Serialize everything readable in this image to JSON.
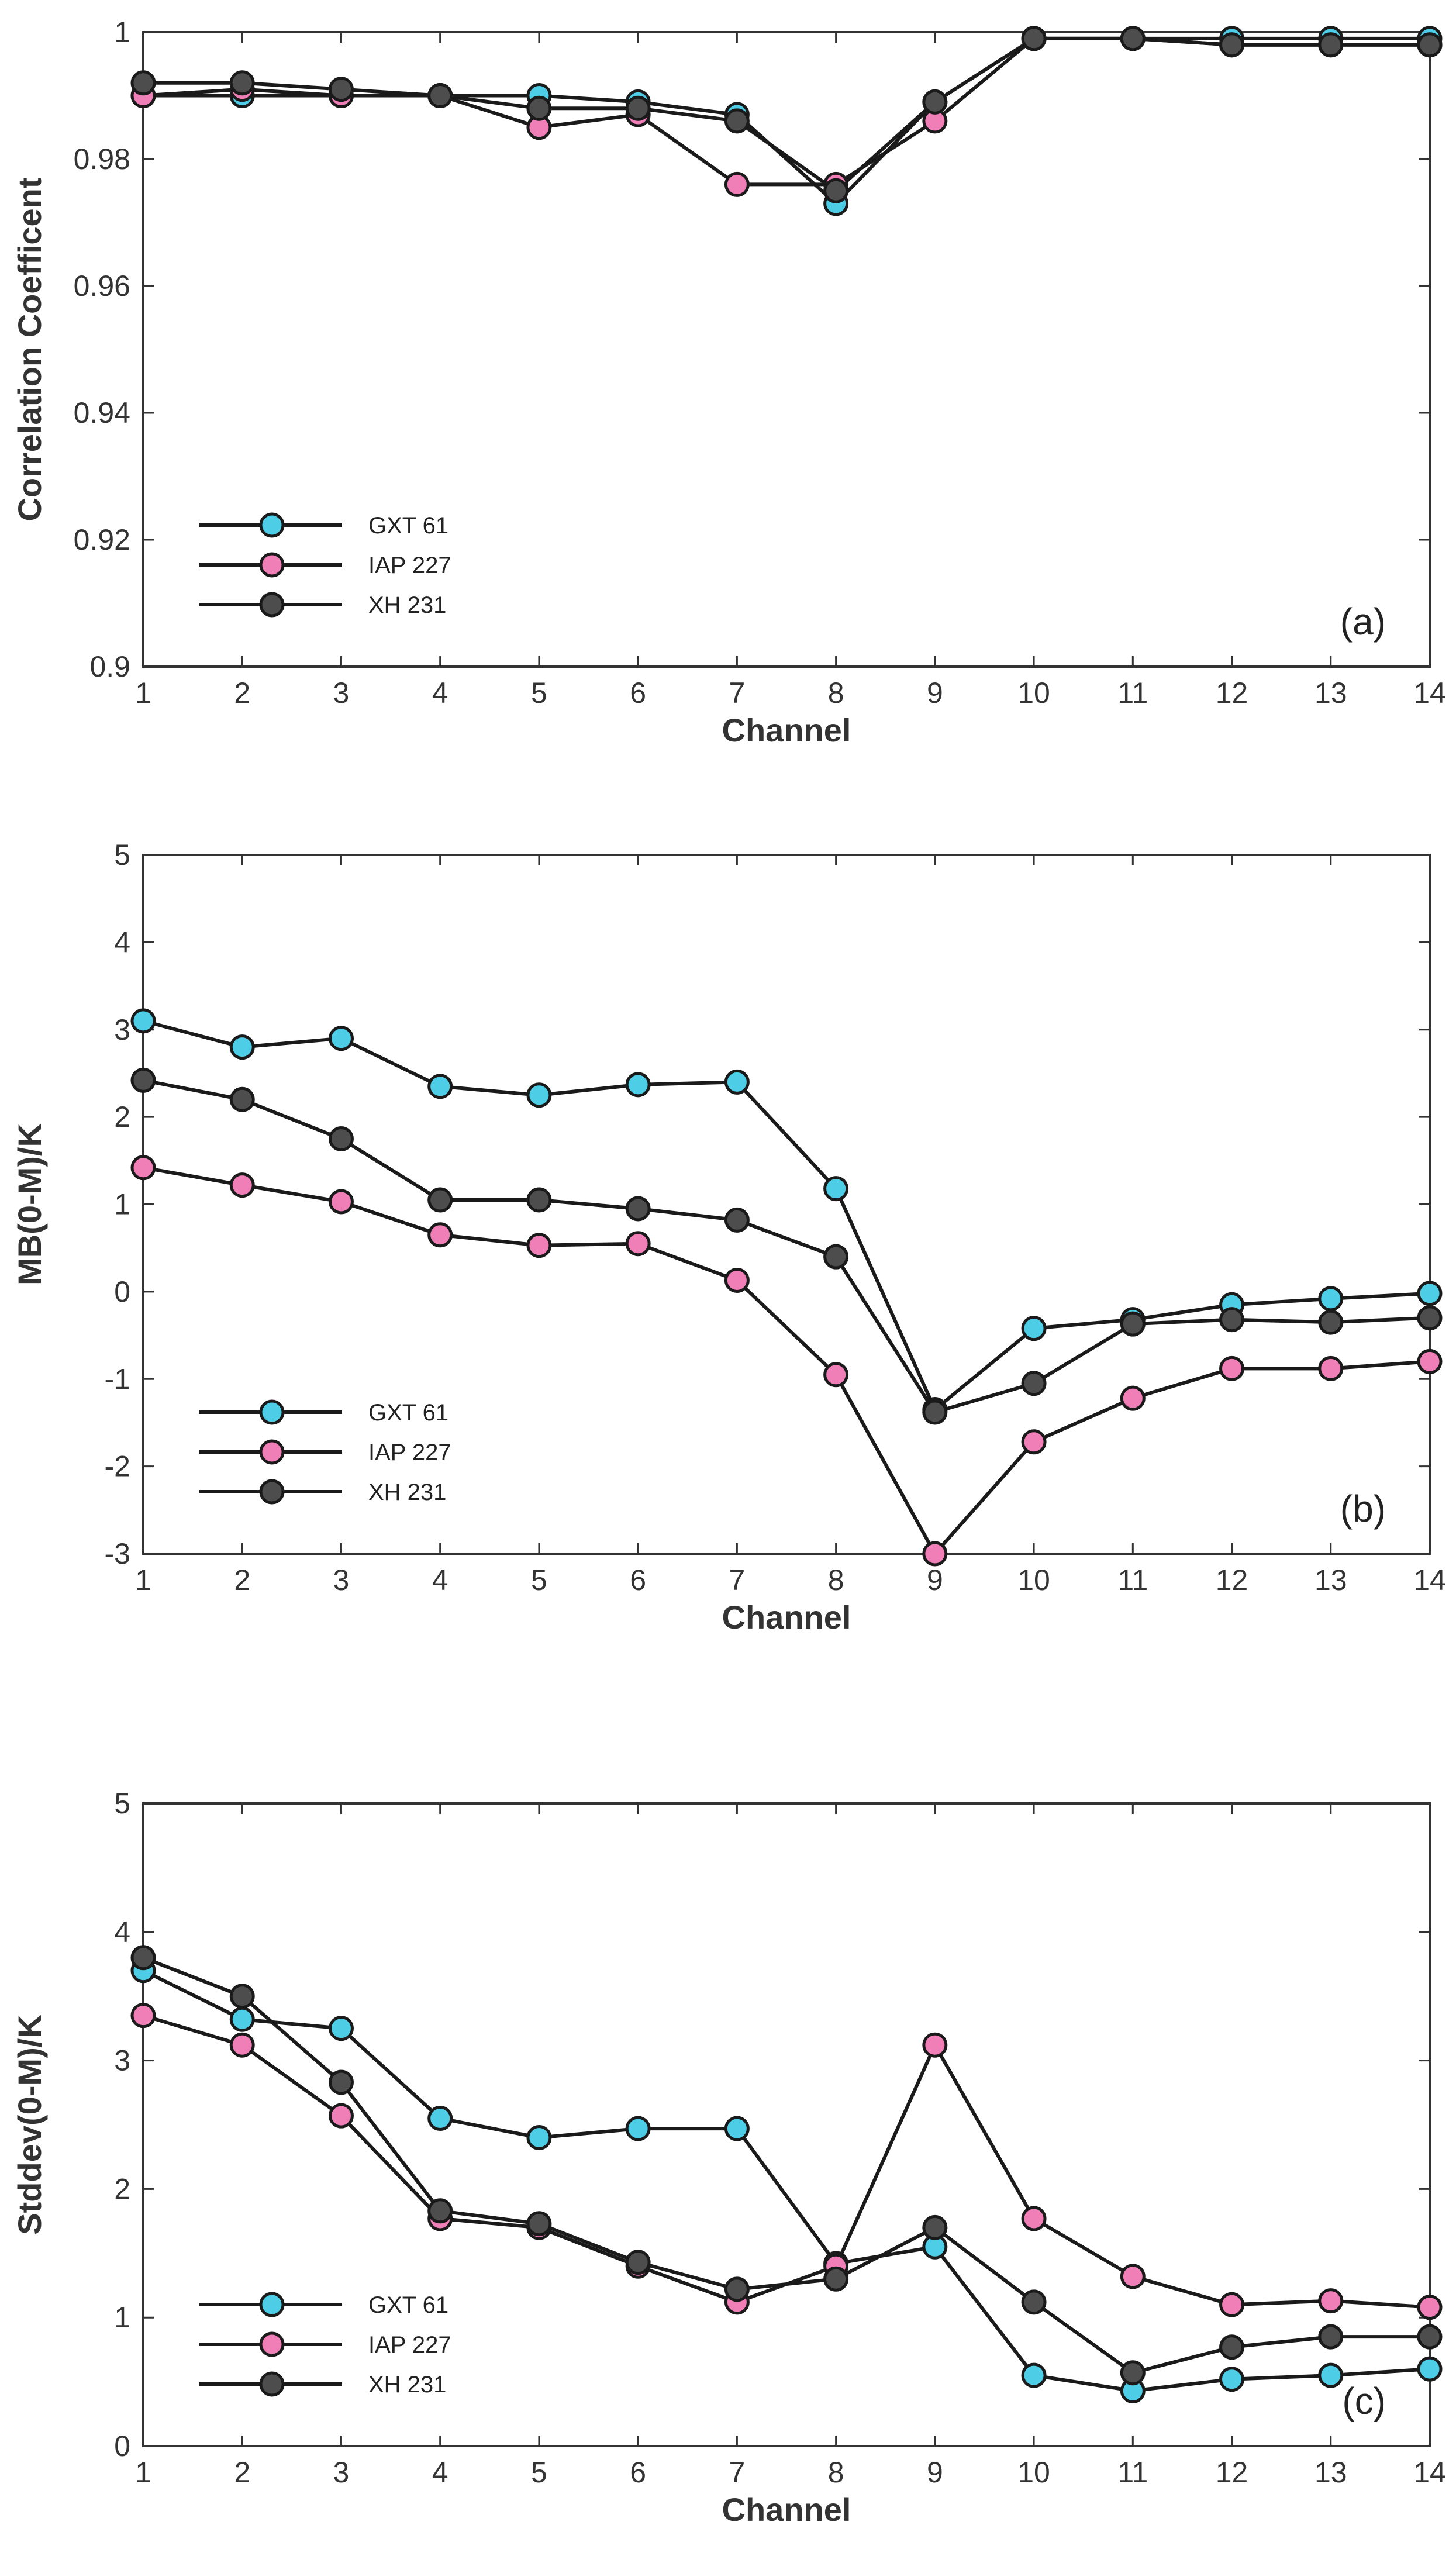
{
  "chart_data": [
    {
      "type": "line",
      "panel_label": "(a)",
      "xlabel": "Channel",
      "ylabel": "Correlation Coefficent",
      "x": [
        1,
        2,
        3,
        4,
        5,
        6,
        7,
        8,
        9,
        10,
        11,
        12,
        13,
        14
      ],
      "xlim": [
        1,
        14
      ],
      "ylim": [
        0.9,
        1
      ],
      "xticks": [
        1,
        2,
        3,
        4,
        5,
        6,
        7,
        8,
        9,
        10,
        11,
        12,
        13,
        14
      ],
      "yticks": [
        0.9,
        0.92,
        0.94,
        0.96,
        0.98,
        1
      ],
      "ytick_labels": [
        "0.9",
        "0.92",
        "0.94",
        "0.96",
        "0.98",
        "1"
      ],
      "legend_position": "bottom-left",
      "series": [
        {
          "name": "GXT 61",
          "color": "#4dcde6",
          "values": [
            0.99,
            0.99,
            0.99,
            0.99,
            0.99,
            0.989,
            0.987,
            0.973,
            0.989,
            0.999,
            0.999,
            0.999,
            0.999,
            0.999
          ]
        },
        {
          "name": "IAP 227",
          "color": "#f07fb8",
          "values": [
            0.99,
            0.991,
            0.99,
            0.99,
            0.985,
            0.987,
            0.976,
            0.976,
            0.986,
            0.999,
            0.999,
            0.998,
            0.998,
            0.998
          ]
        },
        {
          "name": "XH 231",
          "color": "#4d4d4d",
          "values": [
            0.992,
            0.992,
            0.991,
            0.99,
            0.988,
            0.988,
            0.986,
            0.975,
            0.989,
            0.999,
            0.999,
            0.998,
            0.998,
            0.998
          ]
        }
      ]
    },
    {
      "type": "line",
      "panel_label": "(b)",
      "xlabel": "Channel",
      "ylabel": "MB(0-M)/K",
      "x": [
        1,
        2,
        3,
        4,
        5,
        6,
        7,
        8,
        9,
        10,
        11,
        12,
        13,
        14
      ],
      "xlim": [
        1,
        14
      ],
      "ylim": [
        -3,
        5
      ],
      "xticks": [
        1,
        2,
        3,
        4,
        5,
        6,
        7,
        8,
        9,
        10,
        11,
        12,
        13,
        14
      ],
      "yticks": [
        -3,
        -2,
        -1,
        0,
        1,
        2,
        3,
        4,
        5
      ],
      "ytick_labels": [
        "-3",
        "-2",
        "-1",
        "0",
        "1",
        "2",
        "3",
        "4",
        "5"
      ],
      "legend_position": "bottom-left",
      "series": [
        {
          "name": "GXT 61",
          "color": "#4dcde6",
          "values": [
            3.1,
            2.8,
            2.9,
            2.35,
            2.25,
            2.37,
            2.4,
            1.18,
            -1.35,
            -0.42,
            -0.32,
            -0.15,
            -0.08,
            -0.02
          ]
        },
        {
          "name": "IAP 227",
          "color": "#f07fb8",
          "values": [
            1.42,
            1.22,
            1.03,
            0.65,
            0.53,
            0.55,
            0.13,
            -0.95,
            -3.0,
            -1.72,
            -1.22,
            -0.88,
            -0.88,
            -0.8
          ]
        },
        {
          "name": "XH 231",
          "color": "#4d4d4d",
          "values": [
            2.42,
            2.2,
            1.75,
            1.05,
            1.05,
            0.95,
            0.82,
            0.4,
            -1.38,
            -1.05,
            -0.37,
            -0.32,
            -0.35,
            -0.3
          ]
        }
      ]
    },
    {
      "type": "line",
      "panel_label": "(c)",
      "xlabel": "Channel",
      "ylabel": "Stddev(0-M)/K",
      "x": [
        1,
        2,
        3,
        4,
        5,
        6,
        7,
        8,
        9,
        10,
        11,
        12,
        13,
        14
      ],
      "xlim": [
        1,
        14
      ],
      "ylim": [
        0,
        5
      ],
      "xticks": [
        1,
        2,
        3,
        4,
        5,
        6,
        7,
        8,
        9,
        10,
        11,
        12,
        13,
        14
      ],
      "yticks": [
        0,
        1,
        2,
        3,
        4,
        5
      ],
      "ytick_labels": [
        "0",
        "1",
        "2",
        "3",
        "4",
        "5"
      ],
      "legend_position": "bottom-left",
      "series": [
        {
          "name": "GXT 61",
          "color": "#4dcde6",
          "values": [
            3.7,
            3.32,
            3.25,
            2.55,
            2.4,
            2.47,
            2.47,
            1.42,
            1.55,
            0.55,
            0.43,
            0.52,
            0.55,
            0.6
          ]
        },
        {
          "name": "IAP 227",
          "color": "#f07fb8",
          "values": [
            3.35,
            3.12,
            2.57,
            1.77,
            1.7,
            1.4,
            1.12,
            1.4,
            3.12,
            1.77,
            1.32,
            1.1,
            1.13,
            1.08
          ]
        },
        {
          "name": "XH 231",
          "color": "#4d4d4d",
          "values": [
            3.8,
            3.5,
            2.83,
            1.83,
            1.73,
            1.43,
            1.22,
            1.3,
            1.7,
            1.12,
            0.57,
            0.77,
            0.85,
            0.85
          ]
        }
      ]
    }
  ]
}
